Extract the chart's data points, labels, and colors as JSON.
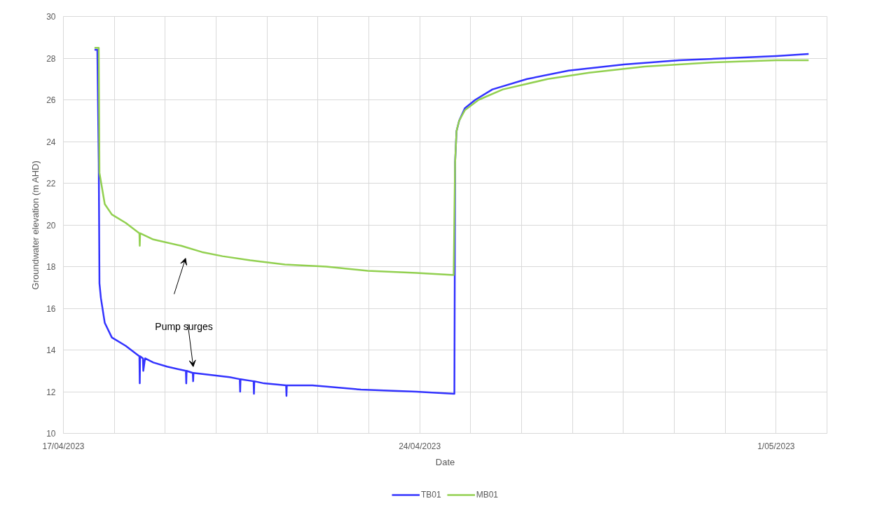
{
  "chart_data": {
    "type": "line",
    "xlabel": "Date",
    "ylabel": "Groundwater elevation (m AHD)",
    "xlim": [
      "2023-04-17",
      "2023-05-02"
    ],
    "xticks": [
      {
        "value": "2023-04-17",
        "label": "17/04/2023"
      },
      {
        "value": "2023-04-18",
        "label": null
      },
      {
        "value": "2023-04-19",
        "label": null
      },
      {
        "value": "2023-04-20",
        "label": null
      },
      {
        "value": "2023-04-21",
        "label": null
      },
      {
        "value": "2023-04-22",
        "label": null
      },
      {
        "value": "2023-04-23",
        "label": null
      },
      {
        "value": "2023-04-24",
        "label": "24/04/2023"
      },
      {
        "value": "2023-04-25",
        "label": null
      },
      {
        "value": "2023-04-26",
        "label": null
      },
      {
        "value": "2023-04-27",
        "label": null
      },
      {
        "value": "2023-04-28",
        "label": null
      },
      {
        "value": "2023-04-29",
        "label": null
      },
      {
        "value": "2023-04-30",
        "label": null
      },
      {
        "value": "2023-05-01",
        "label": "1/05/2023"
      }
    ],
    "ylim": [
      10,
      30
    ],
    "yticks": [
      10,
      12,
      14,
      16,
      18,
      20,
      22,
      24,
      26,
      28,
      30
    ],
    "grid": true,
    "legend": "bottom",
    "line_style": "solid",
    "annotations": [
      "Pump surges"
    ],
    "series": [
      {
        "name": "TB01",
        "color": "#3333ff",
        "x": [
          "2023-04-17T14:40",
          "2023-04-17T16:00",
          "2023-04-17T16:40",
          "2023-04-17T17:00",
          "2023-04-17T17:40",
          "2023-04-17T19:30",
          "2023-04-17T22:50",
          "2023-04-18T05:20",
          "2023-04-18T11:50",
          "2023-04-18T12:00",
          "2023-04-18T12:10",
          "2023-04-18T13:30",
          "2023-04-18T13:40",
          "2023-04-18T14:30",
          "2023-04-18T18:25",
          "2023-04-19T00:55",
          "2023-04-19T09:45",
          "2023-04-19T09:55",
          "2023-04-19T10:05",
          "2023-04-19T13:00",
          "2023-04-19T13:10",
          "2023-04-19T13:20",
          "2023-04-20T06:20",
          "2023-04-20T11:10",
          "2023-04-20T11:20",
          "2023-04-20T11:30",
          "2023-04-20T17:40",
          "2023-04-20T17:50",
          "2023-04-20T18:00",
          "2023-04-20T22:35",
          "2023-04-21T09:00",
          "2023-04-21T09:10",
          "2023-04-21T09:20",
          "2023-04-21T21:25",
          "2023-04-22T20:15",
          "2023-04-23T22:20",
          "2023-04-24T16:20",
          "2023-04-24T16:30",
          "2023-04-24T16:40",
          "2023-04-24T17:20",
          "2023-04-24T18:35",
          "2023-04-24T21:15",
          "2023-04-25T02:10",
          "2023-04-25T10:15",
          "2023-04-26T02:35",
          "2023-04-26T22:10",
          "2023-04-28T00:15",
          "2023-04-29T02:20",
          "2023-04-30T01:10",
          "2023-05-01T00:00",
          "2023-05-01T15:20"
        ],
        "values": [
          28.4,
          28.4,
          23,
          17.2,
          16.5,
          15.3,
          14.6,
          14.2,
          13.7,
          12.4,
          13.7,
          13.6,
          13.0,
          13.6,
          13.4,
          13.2,
          13.0,
          12.4,
          13.0,
          12.9,
          12.5,
          12.9,
          12.7,
          12.6,
          12.0,
          12.6,
          12.5,
          11.9,
          12.5,
          12.4,
          12.3,
          11.8,
          12.3,
          12.3,
          12.1,
          12.0,
          11.9,
          17.5,
          23,
          24.5,
          25,
          25.6,
          26,
          26.5,
          27,
          27.4,
          27.7,
          27.9,
          28.0,
          28.1,
          28.2
        ]
      },
      {
        "name": "MB01",
        "color": "#92d050",
        "x": [
          "2023-04-17T14:40",
          "2023-04-17T16:40",
          "2023-04-17T17:00",
          "2023-04-17T19:30",
          "2023-04-17T22:50",
          "2023-04-18T05:20",
          "2023-04-18T11:50",
          "2023-04-18T12:00",
          "2023-04-18T12:10",
          "2023-04-18T18:25",
          "2023-04-19T07:30",
          "2023-04-19T17:15",
          "2023-04-20T03:00",
          "2023-04-20T16:05",
          "2023-04-21T08:25",
          "2023-04-22T03:55",
          "2023-04-22T23:30",
          "2023-04-23T22:20",
          "2023-04-24T16:00",
          "2023-04-24T16:20",
          "2023-04-24T16:40",
          "2023-04-24T17:20",
          "2023-04-24T18:35",
          "2023-04-24T21:15",
          "2023-04-25T03:45",
          "2023-04-25T15:10",
          "2023-04-26T12:20",
          "2023-04-27T07:55",
          "2023-04-28T10:00",
          "2023-04-29T18:40",
          "2023-05-01T00:00",
          "2023-05-01T15:20"
        ],
        "values": [
          28.5,
          28.5,
          22.5,
          21,
          20.5,
          20.1,
          19.6,
          19.0,
          19.6,
          19.3,
          19.0,
          18.7,
          18.5,
          18.3,
          18.1,
          18.0,
          17.8,
          17.7,
          17.6,
          20.5,
          23,
          24.5,
          25,
          25.5,
          26,
          26.5,
          27,
          27.3,
          27.6,
          27.8,
          27.9,
          27.9
        ]
      }
    ]
  }
}
